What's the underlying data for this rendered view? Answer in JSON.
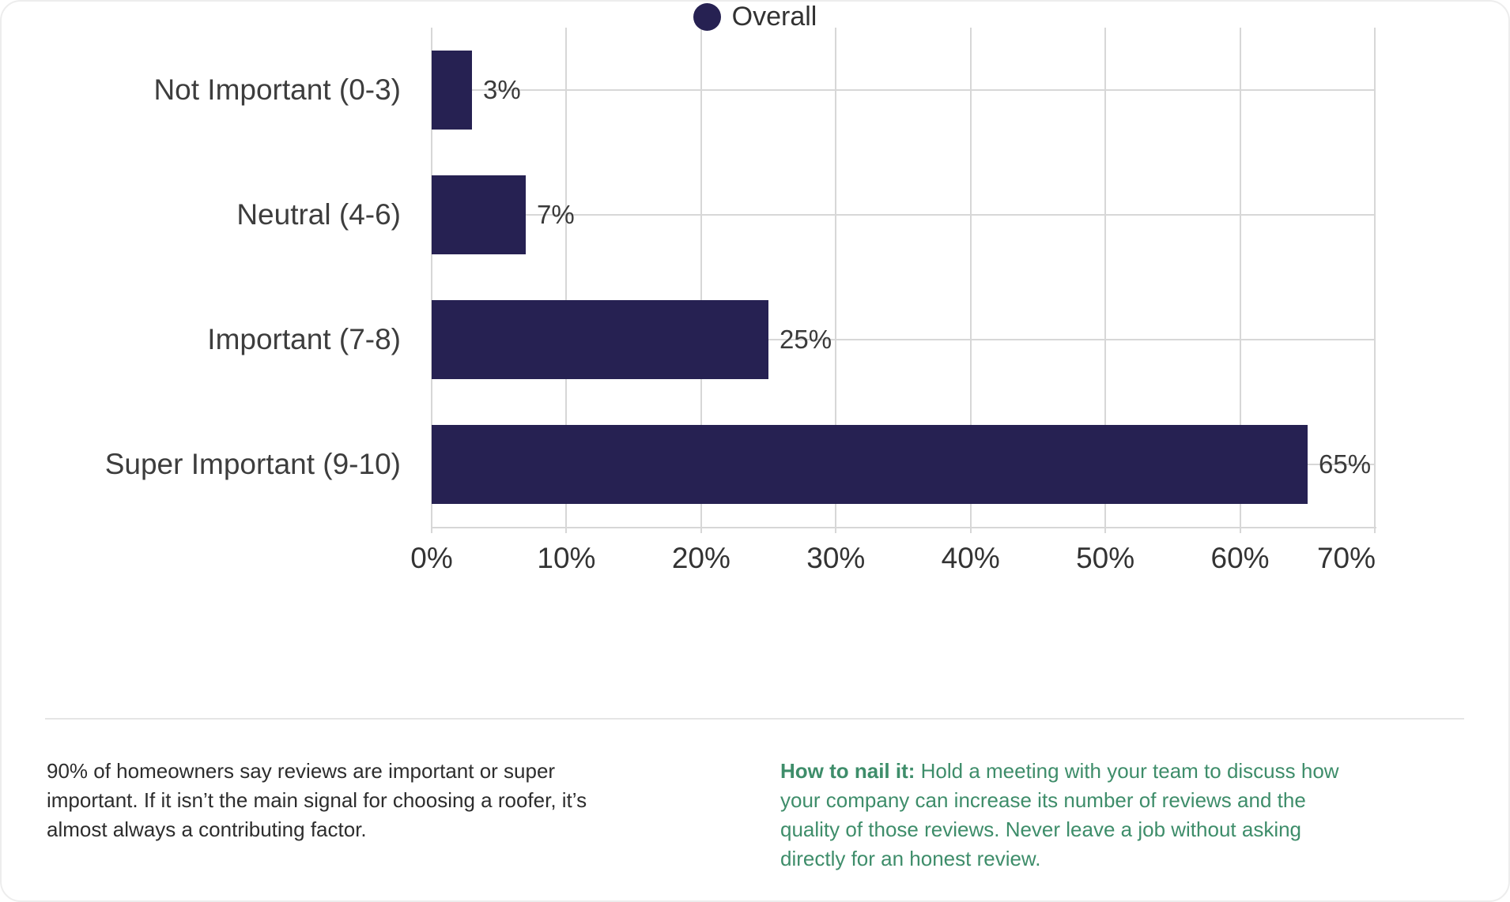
{
  "chart_data": {
    "type": "bar",
    "orientation": "horizontal",
    "title": "",
    "xlabel": "",
    "ylabel": "",
    "categories": [
      "Not Important (0-3)",
      "Neutral (4-6)",
      "Important (7-8)",
      "Super Important (9-10)"
    ],
    "values": [
      3,
      7,
      25,
      65
    ],
    "value_labels": [
      "3%",
      "7%",
      "25%",
      "65%"
    ],
    "x_tick_labels": [
      "0%",
      "10%",
      "20%",
      "30%",
      "40%",
      "50%",
      "60%",
      "70%"
    ],
    "xlim": [
      0,
      70
    ],
    "x_tick_step": 10,
    "grid": "on",
    "legend": {
      "label": "Overall",
      "position": "bottom-center"
    }
  },
  "colors": {
    "bar": "#262152",
    "grid": "#d7d7d7",
    "axis_text": "#333333",
    "category_text": "#3d3d3d",
    "value_text": "#3a3a3a",
    "note_text": "#2d2d2d",
    "green": "#3e8d6a",
    "divider": "#e5e5e5"
  },
  "notes": {
    "left": {
      "lines": [
        "90% of homeowners say reviews are important or super",
        "important. If it isn’t the main signal for choosing a roofer, it’s",
        "almost always a contributing factor."
      ]
    },
    "right": {
      "label": "How to nail it:",
      "first_line_rest": " Hold a meeting with your team to discuss how",
      "lines": [
        "your company can increase its number of reviews and the",
        "quality of those reviews. Never leave a job without asking",
        "directly for an honest review."
      ]
    }
  }
}
